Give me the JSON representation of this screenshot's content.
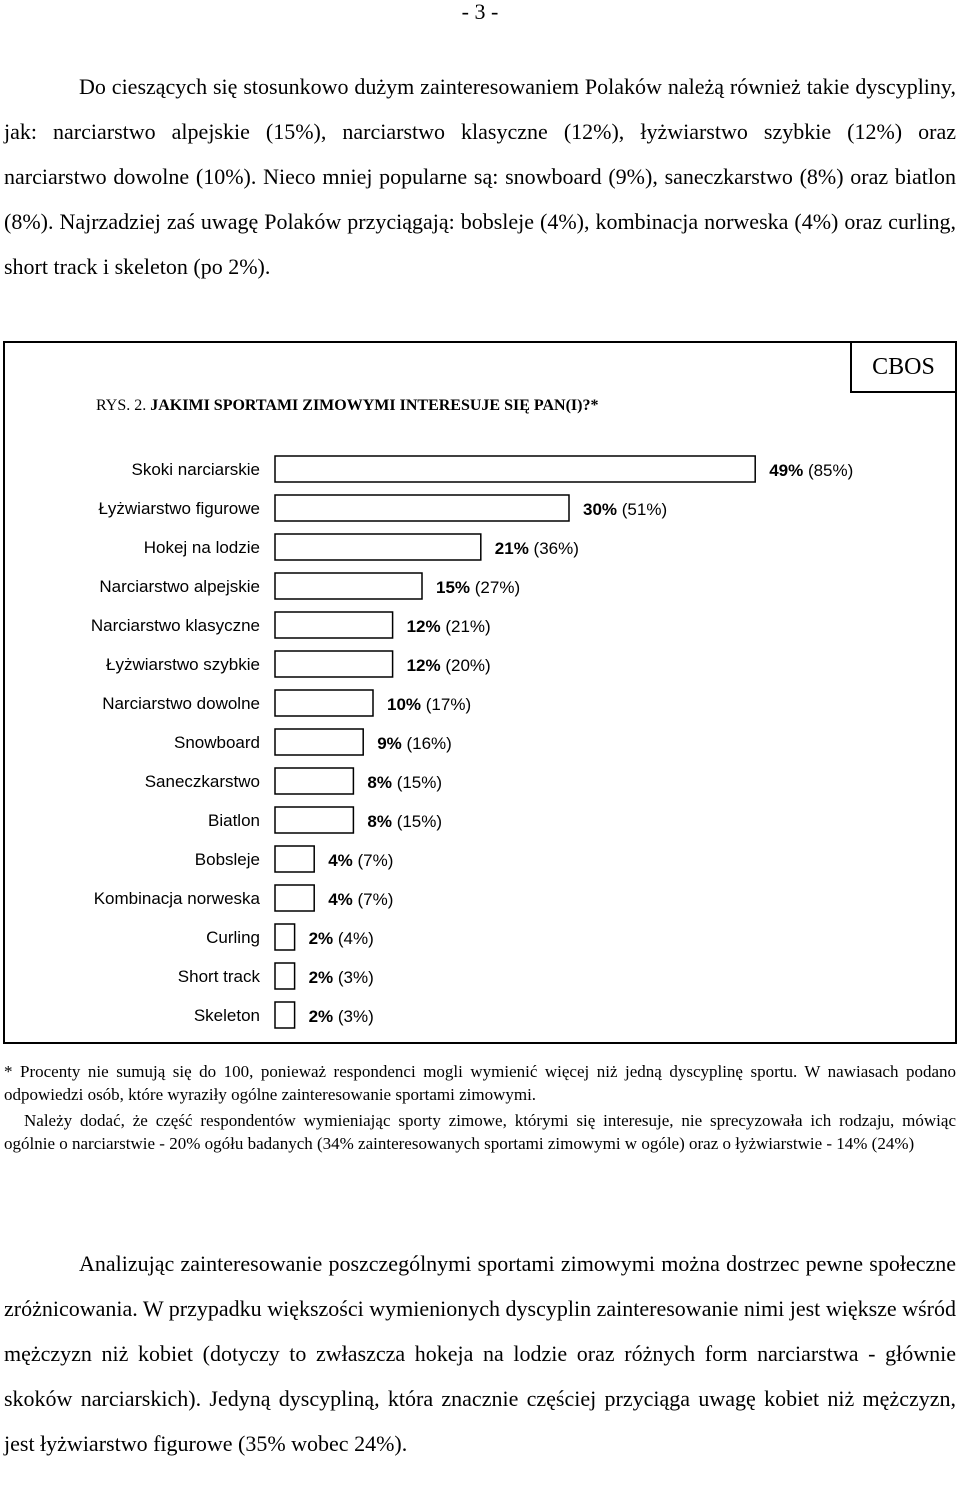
{
  "page_number": "- 3 -",
  "paragraph_top": "Do cieszących się stosunkowo dużym zainteresowaniem Polaków należą również takie dyscypliny, jak: narciarstwo alpejskie (15%), narciarstwo klasyczne (12%), łyżwiarstwo szybkie (12%) oraz narciarstwo dowolne (10%). Nieco mniej popularne są: snowboard (9%), saneczkarstwo (8%) oraz biatlon (8%). Najrzadziej zaś uwagę Polaków przyciągają: bobsleje (4%), kombinacja norweska (4%) oraz curling, short track i skeleton (po 2%).",
  "figure": {
    "label": "RYS. 2.",
    "question": "JAKIMI SPORTAMI ZIMOWYMI INTERESUJE SIĘ PAN(I)?*",
    "source": "CBOS"
  },
  "chart_data": {
    "type": "bar",
    "orientation": "horizontal",
    "title": "JAKIMI SPORTAMI ZIMOWYMI INTERESUJE SIĘ PAN(I)?*",
    "categories": [
      "Skoki narciarskie",
      "Łyżwiarstwo figurowe",
      "Hokej na lodzie",
      "Narciarstwo alpejskie",
      "Narciarstwo klasyczne",
      "Łyżwiarstwo szybkie",
      "Narciarstwo dowolne",
      "Snowboard",
      "Saneczkarstwo",
      "Biatlon",
      "Bobsleje",
      "Kombinacja norweska",
      "Curling",
      "Short track",
      "Skeleton"
    ],
    "values": [
      49,
      30,
      21,
      15,
      12,
      12,
      10,
      9,
      8,
      8,
      4,
      4,
      2,
      2,
      2
    ],
    "value_labels": [
      "49%",
      "30%",
      "21%",
      "15%",
      "12%",
      "12%",
      "10%",
      "9%",
      "8%",
      "8%",
      "4%",
      "4%",
      "2%",
      "2%",
      "2%"
    ],
    "secondary_labels": [
      "(85%)",
      "(51%)",
      "(36%)",
      "(27%)",
      "(21%)",
      "(20%)",
      "(17%)",
      "(16%)",
      "(15%)",
      "(15%)",
      "(7%)",
      "(7%)",
      "(4%)",
      "(3%)",
      "(3%)"
    ],
    "xlim": [
      0,
      50
    ],
    "grid": false,
    "bar_color": "#ffffff",
    "bar_stroke": "#000000"
  },
  "notes": {
    "footnote_1": "* Procenty nie sumują się do 100, ponieważ respondenci mogli wymienić więcej niż jedną dyscyplinę sportu. W nawiasach podano odpowiedzi osób, które wyraziły ogólne zainteresowanie sportami zimowymi.",
    "footnote_2": "Należy dodać, że część respondentów wymieniając sporty zimowe, którymi się interesuje, nie sprecyzowała ich rodzaju, mówiąc ogólnie o narciarstwie - 20% ogółu badanych (34% zainteresowanych sportami zimowymi w ogóle) oraz o łyżwiarstwie - 14% (24%)"
  },
  "paragraph_bottom": "Analizując zainteresowanie poszczególnymi sportami zimowymi można dostrzec pewne społeczne zróżnicowania. W przypadku większości wymienionych dyscyplin zainteresowanie nimi jest większe wśród mężczyzn niż kobiet (dotyczy to zwłaszcza hokeja na lodzie oraz różnych form narciarstwa - głównie skoków narciarskich). Jedyną dyscypliną, która znacznie częściej przyciąga uwagę kobiet niż mężczyzn, jest łyżwiarstwo figurowe (35% wobec 24%)."
}
